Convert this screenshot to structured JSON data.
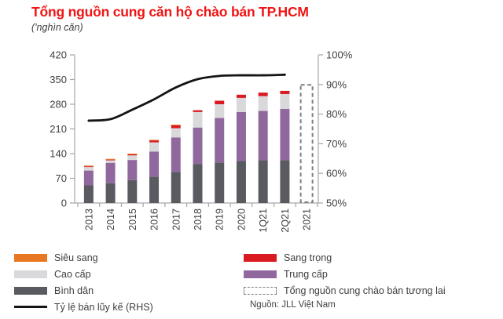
{
  "header": {
    "title": "Tổng nguồn cung căn hộ chào bán TP.HCM",
    "subtitle": "('nghìn căn)"
  },
  "source": "Nguồn: JLL Việt Nam",
  "colors": {
    "sieu_sang": "#E87722",
    "sang_trong": "#DA1A21",
    "cao_cap": "#D9D9DB",
    "trung_cap": "#91689E",
    "binh_dan": "#595B60",
    "future": "#7F7F7F",
    "line": "#141414",
    "axis": "#A6A6A6",
    "tick_text": "#3F3F3F",
    "title_text": "#F01414"
  },
  "legend": {
    "left": [
      {
        "label": "Siêu sang",
        "swatch": "rect",
        "color_key": "sieu_sang"
      },
      {
        "label": "Cao cấp",
        "swatch": "rect",
        "color_key": "cao_cap"
      },
      {
        "label": "Bình dân",
        "swatch": "rect",
        "color_key": "binh_dan"
      },
      {
        "label": "Tỷ lệ bán lũy kế (RHS)",
        "swatch": "line",
        "color_key": "line"
      }
    ],
    "right": [
      {
        "label": "Sang trọng",
        "swatch": "rect",
        "color_key": "sang_trong"
      },
      {
        "label": "Trung cấp",
        "swatch": "rect",
        "color_key": "trung_cap"
      },
      {
        "label": "Tổng nguồn cung chào bán tương lai",
        "swatch": "dashed",
        "color_key": "future"
      }
    ]
  },
  "chart_data": {
    "type": "bar",
    "subtype": "stacked-bars-with-line",
    "title": "Tổng nguồn cung căn hộ chào bán TP.HCM",
    "unit": "'nghìn căn (thousand units)",
    "categories": [
      "2013",
      "2014",
      "2015",
      "2016",
      "2017",
      "2018",
      "2019",
      "2020",
      "1Q21",
      "2Q21",
      "2021"
    ],
    "stack_order_bottom_to_top": [
      "binh_dan",
      "trung_cap",
      "cao_cap",
      "sang_trong",
      "sieu_sang"
    ],
    "series": [
      {
        "key": "binh_dan",
        "name": "Bình dân",
        "color_key": "binh_dan",
        "values": [
          50,
          56,
          65,
          75,
          88,
          110,
          115,
          119,
          121,
          121,
          null
        ]
      },
      {
        "key": "trung_cap",
        "name": "Trung cấp",
        "color_key": "trung_cap",
        "values": [
          42,
          58,
          57,
          71,
          98,
          104,
          126,
          139,
          140,
          146,
          null
        ]
      },
      {
        "key": "cao_cap",
        "name": "Cao cấp",
        "color_key": "cao_cap",
        "values": [
          10,
          7,
          13,
          26,
          26,
          44,
          39,
          40,
          42,
          42,
          null
        ]
      },
      {
        "key": "sang_trong",
        "name": "Sang trọng",
        "color_key": "sang_trong",
        "values": [
          2,
          2,
          3,
          6,
          9,
          5,
          10,
          9,
          10,
          9,
          null
        ]
      },
      {
        "key": "sieu_sang",
        "name": "Siêu sang",
        "color_key": "sieu_sang",
        "values": [
          2,
          2,
          2,
          1,
          1,
          0,
          0,
          0,
          0,
          0,
          null
        ]
      }
    ],
    "future_bar": {
      "category": "2021",
      "name": "Tổng nguồn cung chào bán tương lai",
      "value": 335,
      "style": "dashed-outline"
    },
    "line_series": {
      "name": "Tỷ lệ bán lũy kế (RHS)",
      "axis": "right",
      "color_key": "line",
      "values": [
        77.8,
        78.3,
        81.5,
        85.0,
        89.0,
        91.8,
        92.9,
        93.1,
        93.1,
        93.3
      ]
    },
    "left_axis": {
      "min": 0,
      "max": 420,
      "step": 70,
      "tick_labels": [
        "0",
        "70",
        "140",
        "210",
        "280",
        "350",
        "420"
      ]
    },
    "right_axis": {
      "min": 50,
      "max": 100,
      "step": 10,
      "tick_labels": [
        "50%",
        "60%",
        "70%",
        "80%",
        "90%",
        "100%"
      ]
    },
    "grid": false,
    "legend_position": "bottom"
  }
}
